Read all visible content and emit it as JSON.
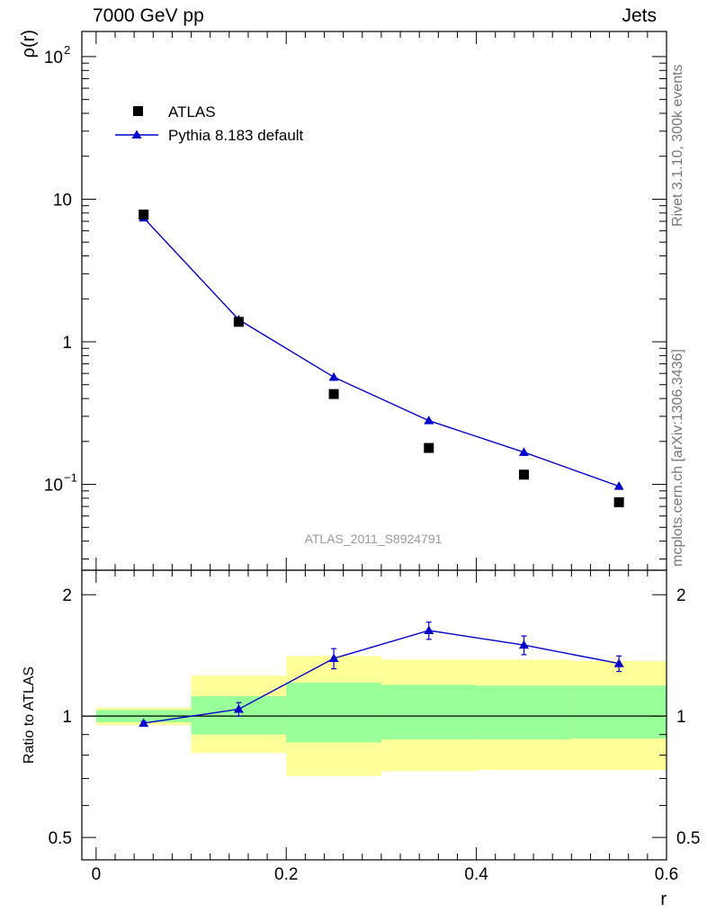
{
  "header": {
    "left": "7000 GeV pp",
    "right": "Jets"
  },
  "side_labels": {
    "rivet": "Rivet 3.1.10,  300k events",
    "mcplots": "mcplots.cern.ch [arXiv:1306.3436]"
  },
  "chart_data": {
    "type": "scatter",
    "title": "",
    "analysis_label": "ATLAS_2011_S8924791",
    "xlabel": "r",
    "xlim": [
      -0.015,
      0.6
    ],
    "x_ticks": [
      {
        "value": 0,
        "label": "0"
      },
      {
        "value": 0.2,
        "label": "0.2"
      },
      {
        "value": 0.4,
        "label": "0.4"
      },
      {
        "value": 0.6,
        "label": "0.6"
      }
    ],
    "main": {
      "ylabel": "ρ(r)",
      "yscale": "log",
      "ylim": [
        0.025,
        150
      ],
      "y_ticks": [
        {
          "value": 0.1,
          "base": "10",
          "exp": "−1"
        },
        {
          "value": 1,
          "base": "1",
          "exp": ""
        },
        {
          "value": 10,
          "base": "10",
          "exp": ""
        },
        {
          "value": 100,
          "base": "10",
          "exp": "2"
        }
      ],
      "legend": [
        {
          "label": "ATLAS",
          "marker": "square",
          "color": "#000000"
        },
        {
          "label": "Pythia 8.183 default",
          "marker": "triangle",
          "color": "#0000cc"
        }
      ],
      "data": {
        "name": "ATLAS",
        "x": [
          0.05,
          0.15,
          0.25,
          0.35,
          0.45,
          0.55
        ],
        "y": [
          7.8,
          1.38,
          0.43,
          0.18,
          0.117,
          0.075
        ]
      },
      "mc": {
        "name": "Pythia 8.183 default",
        "x": [
          0.05,
          0.15,
          0.25,
          0.35,
          0.45,
          0.55
        ],
        "y": [
          7.4,
          1.43,
          0.565,
          0.28,
          0.168,
          0.097
        ],
        "err": [
          0.15,
          0.05,
          0.035,
          0.01,
          0.01,
          0.004
        ]
      }
    },
    "ratio": {
      "ylabel": "Ratio to ATLAS",
      "ylim": [
        0.44,
        2.3
      ],
      "y_ticks": [
        {
          "value": 0.5,
          "label": "0.5"
        },
        {
          "value": 1,
          "label": "1"
        },
        {
          "value": 2,
          "label": "2"
        }
      ],
      "bands": [
        {
          "x0": 0.0,
          "x1": 0.1,
          "yellow": [
            0.95,
            1.05
          ],
          "green": [
            0.965,
            1.035
          ]
        },
        {
          "x0": 0.1,
          "x1": 0.2,
          "yellow": [
            0.81,
            1.26
          ],
          "green": [
            0.9,
            1.12
          ]
        },
        {
          "x0": 0.2,
          "x1": 0.3,
          "yellow": [
            0.71,
            1.41
          ],
          "green": [
            0.86,
            1.21
          ]
        },
        {
          "x0": 0.3,
          "x1": 0.4,
          "yellow": [
            0.73,
            1.38
          ],
          "green": [
            0.875,
            1.195
          ]
        },
        {
          "x0": 0.4,
          "x1": 0.5,
          "yellow": [
            0.735,
            1.38
          ],
          "green": [
            0.875,
            1.19
          ]
        },
        {
          "x0": 0.5,
          "x1": 0.6,
          "yellow": [
            0.735,
            1.37
          ],
          "green": [
            0.88,
            1.19
          ]
        }
      ],
      "mc": {
        "name": "Pythia 8.183 default",
        "x": [
          0.05,
          0.15,
          0.25,
          0.35,
          0.45,
          0.55
        ],
        "y": [
          0.96,
          1.04,
          1.39,
          1.63,
          1.5,
          1.35
        ],
        "err_lo": [
          0.01,
          0.04,
          0.08,
          0.08,
          0.08,
          0.06
        ],
        "err_hi": [
          0.01,
          0.04,
          0.08,
          0.08,
          0.08,
          0.06
        ]
      }
    }
  }
}
